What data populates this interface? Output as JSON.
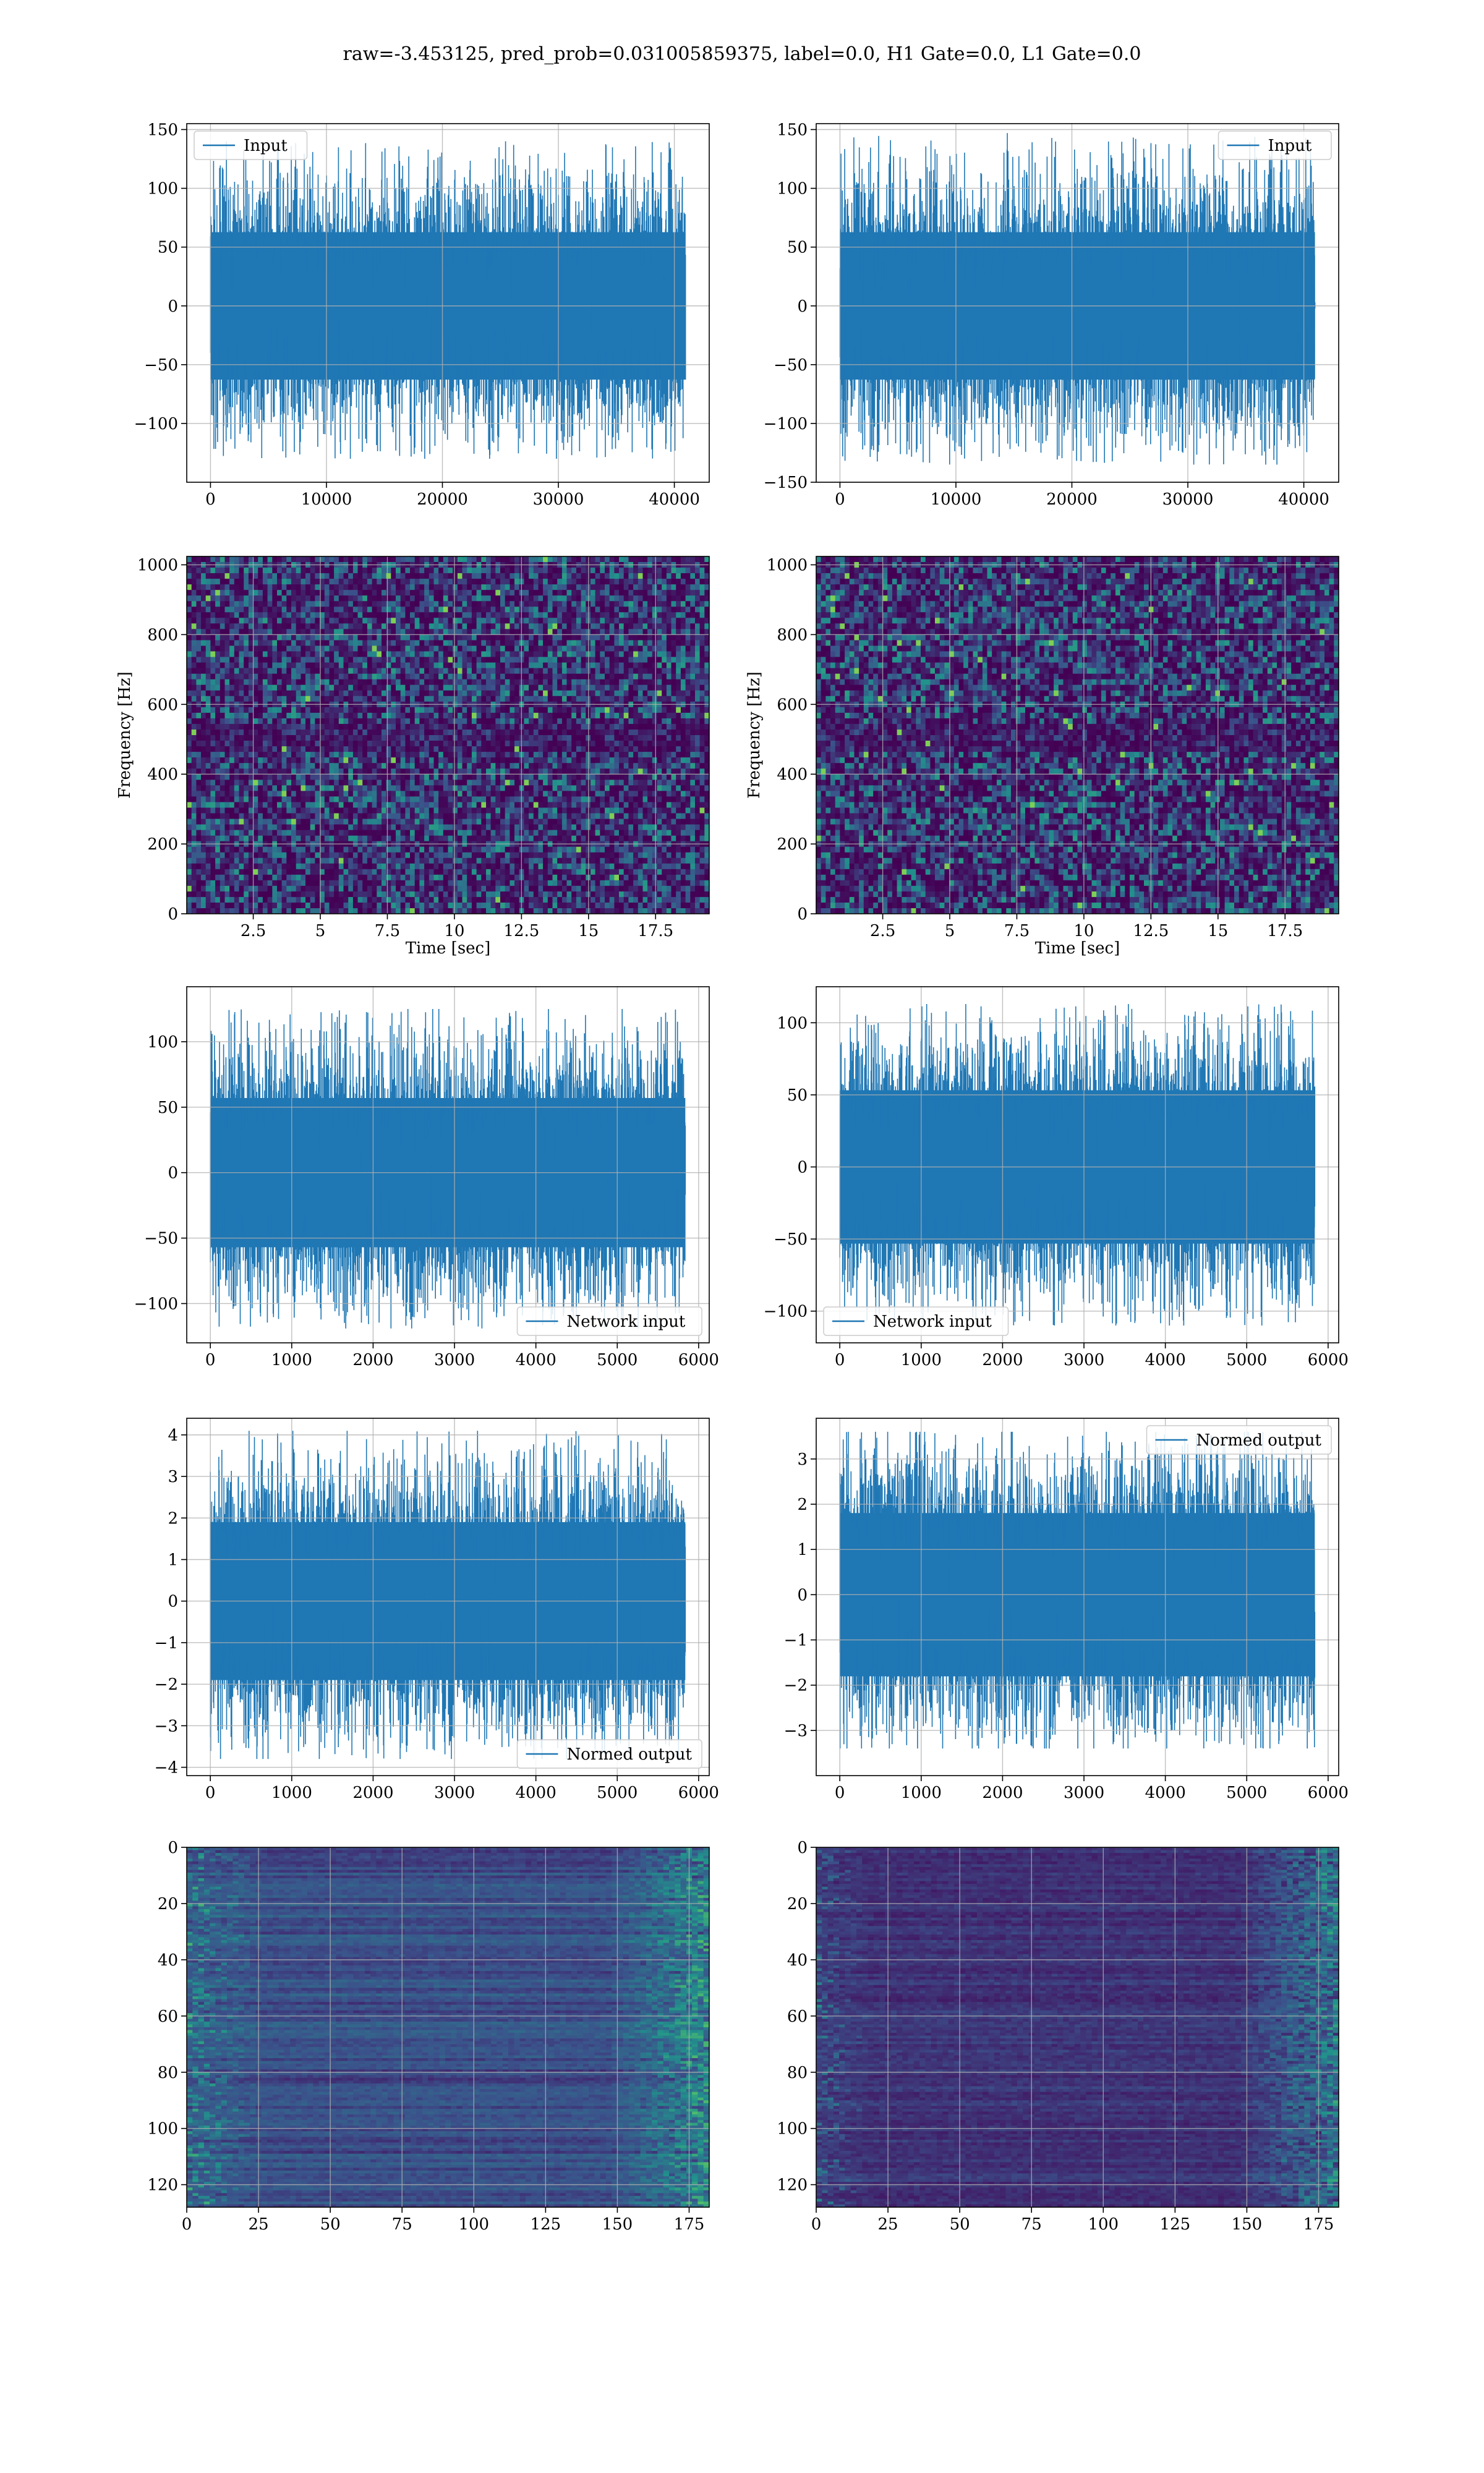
{
  "title": "raw=-3.453125, pred_prob=0.031005859375, label=0.0, H1 Gate=0.0, L1 Gate=0.0",
  "colors": {
    "line": "#1f77b4",
    "grid": "#b0b0b0",
    "viridis_low": "#440154",
    "viridis_high": "#fde725"
  },
  "chart_data": [
    {
      "type": "line",
      "row": 1,
      "col": 1,
      "series": [
        {
          "name": "Input",
          "style": "dense-noise",
          "n": 40960
        }
      ],
      "xlim": [
        -2048,
        43008
      ],
      "ylim": [
        -150,
        155
      ],
      "yrange_drawn": [
        -130,
        140
      ],
      "sigma": 33,
      "xticks": [
        0,
        10000,
        20000,
        30000,
        40000
      ],
      "yticks": [
        -100,
        -50,
        0,
        50,
        100,
        150
      ],
      "xlabel": "",
      "ylabel": "",
      "legend": "top-left",
      "grid": true
    },
    {
      "type": "line",
      "row": 1,
      "col": 2,
      "series": [
        {
          "name": "Input",
          "style": "dense-noise",
          "n": 40960
        }
      ],
      "xlim": [
        -2048,
        43008
      ],
      "ylim": [
        -150,
        155
      ],
      "yrange_drawn": [
        -135,
        147
      ],
      "sigma": 33,
      "xticks": [
        0,
        10000,
        20000,
        30000,
        40000
      ],
      "yticks": [
        -150,
        -100,
        -50,
        0,
        50,
        100,
        150
      ],
      "xlabel": "",
      "ylabel": "",
      "legend": "top-right",
      "grid": true
    },
    {
      "type": "heatmap",
      "row": 2,
      "col": 1,
      "style": "spectrogram",
      "xlim": [
        0.02,
        19.5
      ],
      "ylim": [
        0,
        1024
      ],
      "xticks": [
        2.5,
        5.0,
        7.5,
        10.0,
        12.5,
        15.0,
        17.5
      ],
      "yticks": [
        0,
        200,
        400,
        600,
        800,
        1000
      ],
      "xlabel": "Time [sec]",
      "ylabel": "Frequency [Hz]",
      "grid": true,
      "colormap": "viridis"
    },
    {
      "type": "heatmap",
      "row": 2,
      "col": 2,
      "style": "spectrogram",
      "xlim": [
        0.02,
        19.5
      ],
      "ylim": [
        0,
        1024
      ],
      "xticks": [
        2.5,
        5.0,
        7.5,
        10.0,
        12.5,
        15.0,
        17.5
      ],
      "yticks": [
        0,
        200,
        400,
        600,
        800,
        1000
      ],
      "xlabel": "Time [sec]",
      "ylabel": "Frequency [Hz]",
      "grid": true,
      "colormap": "viridis"
    },
    {
      "type": "line",
      "row": 3,
      "col": 1,
      "series": [
        {
          "name": "Network input",
          "style": "dense-noise",
          "n": 5836
        }
      ],
      "xlim": [
        -290,
        6130
      ],
      "ylim": [
        -130,
        142
      ],
      "yrange_drawn": [
        -119,
        125
      ],
      "sigma": 30,
      "xticks": [
        0,
        1000,
        2000,
        3000,
        4000,
        5000,
        6000
      ],
      "yticks": [
        -100,
        -50,
        0,
        50,
        100
      ],
      "xlabel": "",
      "ylabel": "",
      "legend": "bottom-right",
      "grid": true
    },
    {
      "type": "line",
      "row": 3,
      "col": 2,
      "series": [
        {
          "name": "Network input",
          "style": "dense-noise",
          "n": 5836
        }
      ],
      "xlim": [
        -290,
        6130
      ],
      "ylim": [
        -122,
        125
      ],
      "yrange_drawn": [
        -110,
        113
      ],
      "sigma": 28,
      "xticks": [
        0,
        1000,
        2000,
        3000,
        4000,
        5000,
        6000
      ],
      "yticks": [
        -100,
        -50,
        0,
        50,
        100
      ],
      "xlabel": "",
      "ylabel": "",
      "legend": "bottom-left",
      "grid": true
    },
    {
      "type": "line",
      "row": 4,
      "col": 1,
      "series": [
        {
          "name": "Normed output",
          "style": "dense-noise",
          "n": 5836
        }
      ],
      "xlim": [
        -290,
        6130
      ],
      "ylim": [
        -4.2,
        4.4
      ],
      "yrange_drawn": [
        -3.8,
        4.1
      ],
      "sigma": 1.0,
      "xticks": [
        0,
        1000,
        2000,
        3000,
        4000,
        5000,
        6000
      ],
      "yticks": [
        -4,
        -3,
        -2,
        -1,
        0,
        1,
        2,
        3,
        4
      ],
      "xlabel": "",
      "ylabel": "",
      "legend": "bottom-right",
      "grid": true
    },
    {
      "type": "line",
      "row": 4,
      "col": 2,
      "series": [
        {
          "name": "Normed output",
          "style": "dense-noise",
          "n": 5836
        }
      ],
      "xlim": [
        -290,
        6130
      ],
      "ylim": [
        -4.0,
        3.9
      ],
      "yrange_drawn": [
        -3.4,
        3.6
      ],
      "sigma": 0.95,
      "xticks": [
        0,
        1000,
        2000,
        3000,
        4000,
        5000,
        6000
      ],
      "yticks": [
        -3,
        -2,
        -1,
        0,
        1,
        2,
        3
      ],
      "xlabel": "",
      "ylabel": "",
      "legend": "top-right",
      "grid": true
    },
    {
      "type": "heatmap",
      "row": 5,
      "col": 1,
      "style": "feature-map",
      "xlim": [
        0,
        182
      ],
      "ylim": [
        128,
        0
      ],
      "rows": 128,
      "cols": 182,
      "xticks": [
        0,
        25,
        50,
        75,
        100,
        125,
        150,
        175
      ],
      "yticks": [
        0,
        20,
        40,
        60,
        80,
        100,
        120
      ],
      "xlabel": "",
      "ylabel": "",
      "grid": true,
      "colormap": "viridis"
    },
    {
      "type": "heatmap",
      "row": 5,
      "col": 2,
      "style": "feature-map",
      "xlim": [
        0,
        182
      ],
      "ylim": [
        128,
        0
      ],
      "rows": 128,
      "cols": 182,
      "xticks": [
        0,
        25,
        50,
        75,
        100,
        125,
        150,
        175
      ],
      "yticks": [
        0,
        20,
        40,
        60,
        80,
        100,
        120
      ],
      "xlabel": "",
      "ylabel": "",
      "grid": true,
      "colormap": "viridis"
    }
  ]
}
